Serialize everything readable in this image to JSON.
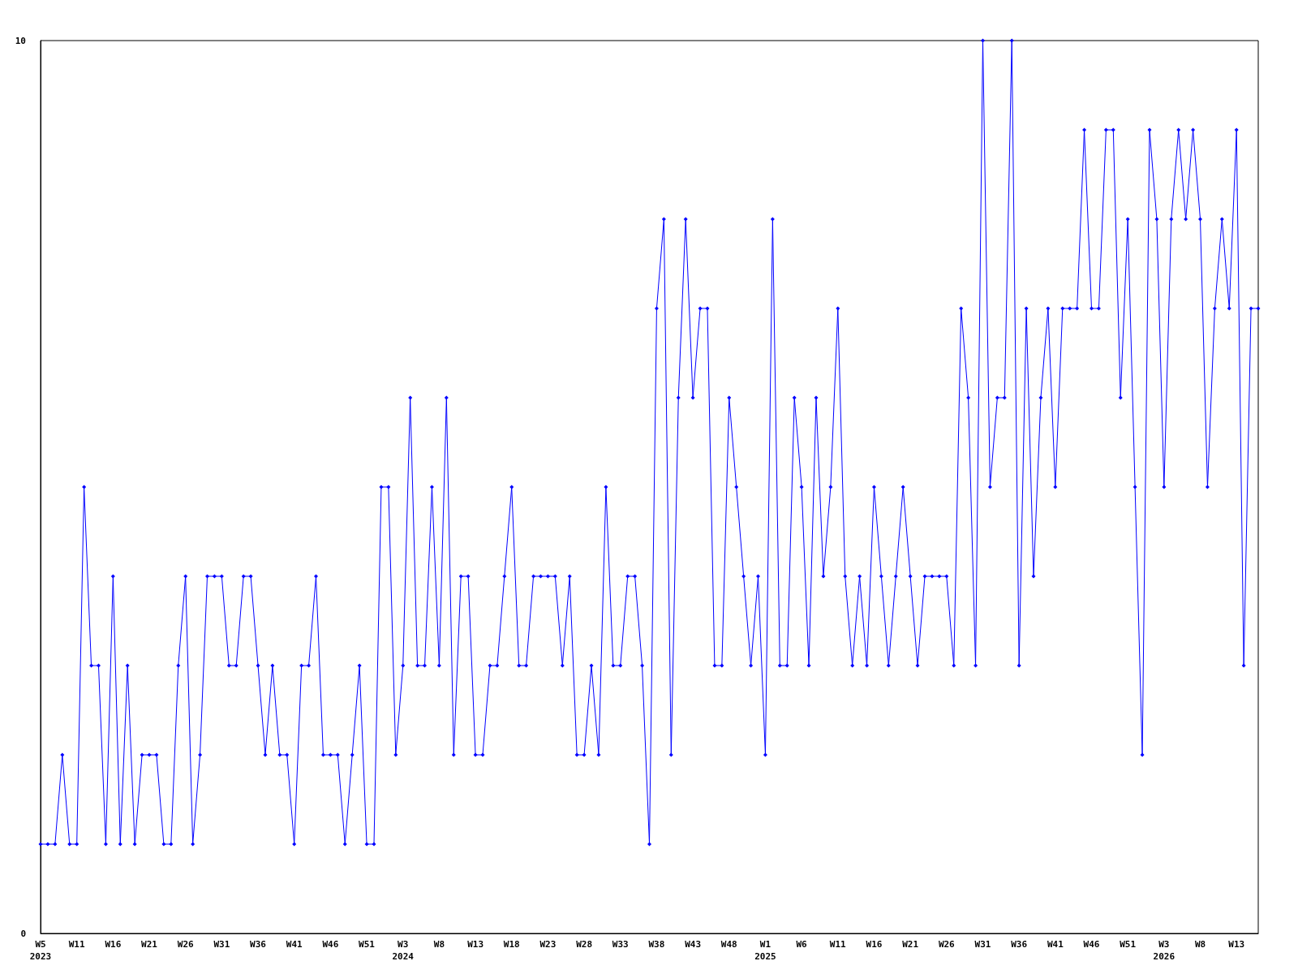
{
  "chart_data": {
    "type": "line",
    "categories": [
      "W5\n2023",
      null,
      null,
      null,
      null,
      "W11",
      null,
      null,
      null,
      null,
      "W16",
      null,
      null,
      null,
      null,
      "W21",
      null,
      null,
      null,
      null,
      "W26",
      null,
      null,
      null,
      null,
      "W31",
      null,
      null,
      null,
      null,
      "W36",
      null,
      null,
      null,
      null,
      "W41",
      null,
      null,
      null,
      null,
      "W46",
      null,
      null,
      null,
      null,
      "W51",
      null,
      null,
      null,
      null,
      "W3\n2024",
      null,
      null,
      null,
      null,
      "W8",
      null,
      null,
      null,
      null,
      "W13",
      null,
      null,
      null,
      null,
      "W18",
      null,
      null,
      null,
      null,
      "W23",
      null,
      null,
      null,
      null,
      "W28",
      null,
      null,
      null,
      null,
      "W33",
      null,
      null,
      null,
      null,
      "W38",
      null,
      null,
      null,
      null,
      "W43",
      null,
      null,
      null,
      null,
      "W48",
      null,
      null,
      null,
      null,
      "W1\n2025",
      null,
      null,
      null,
      null,
      "W6",
      null,
      null,
      null,
      null,
      "W11",
      null,
      null,
      null,
      null,
      "W16",
      null,
      null,
      null,
      null,
      "W21",
      null,
      null,
      null,
      null,
      "W26",
      null,
      null,
      null,
      null,
      "W31",
      null,
      null,
      null,
      null,
      "W36",
      null,
      null,
      null,
      null,
      "W41",
      null,
      null,
      null,
      null,
      "W46",
      null,
      null,
      null,
      null,
      "W51",
      null,
      null,
      null,
      null,
      "W3\n2026",
      null,
      null,
      null,
      null,
      "W8",
      null,
      null,
      null,
      null,
      "W13",
      null,
      null,
      null
    ],
    "series": [
      {
        "color": "#0000ff",
        "values": [
          1,
          1,
          1,
          2,
          1,
          1,
          5,
          3,
          3,
          1,
          4,
          1,
          3,
          1,
          2,
          2,
          2,
          1,
          1,
          3,
          4,
          1,
          2,
          4,
          4,
          4,
          3,
          3,
          4,
          4,
          3,
          2,
          3,
          2,
          2,
          1,
          3,
          3,
          4,
          2,
          2,
          2,
          1,
          2,
          3,
          1,
          1,
          5,
          5,
          2,
          3,
          6,
          3,
          3,
          5,
          3,
          6,
          2,
          4,
          4,
          2,
          2,
          3,
          3,
          4,
          5,
          3,
          3,
          4,
          4,
          4,
          4,
          3,
          4,
          2,
          2,
          3,
          2,
          5,
          3,
          3,
          4,
          4,
          3,
          1,
          7,
          8,
          2,
          6,
          8,
          6,
          7,
          7,
          3,
          3,
          6,
          5,
          4,
          3,
          4,
          2,
          8,
          3,
          3,
          6,
          5,
          3,
          6,
          4,
          5,
          7,
          4,
          3,
          4,
          3,
          5,
          4,
          3,
          4,
          5,
          4,
          3,
          4,
          4,
          4,
          4,
          3,
          7,
          6,
          3,
          10,
          5,
          6,
          6,
          10,
          3,
          7,
          4,
          6,
          7,
          5,
          7,
          7,
          7,
          9,
          7,
          7,
          9,
          9,
          6,
          8,
          5,
          2,
          9,
          8,
          5,
          8,
          9,
          8,
          9,
          8,
          5,
          7,
          8,
          7,
          9,
          3,
          7,
          7
        ]
      }
    ],
    "ylim": [
      0,
      10
    ],
    "yticks": [
      0,
      10
    ],
    "grid": false,
    "marker": "diamond",
    "line_style": "solid"
  }
}
